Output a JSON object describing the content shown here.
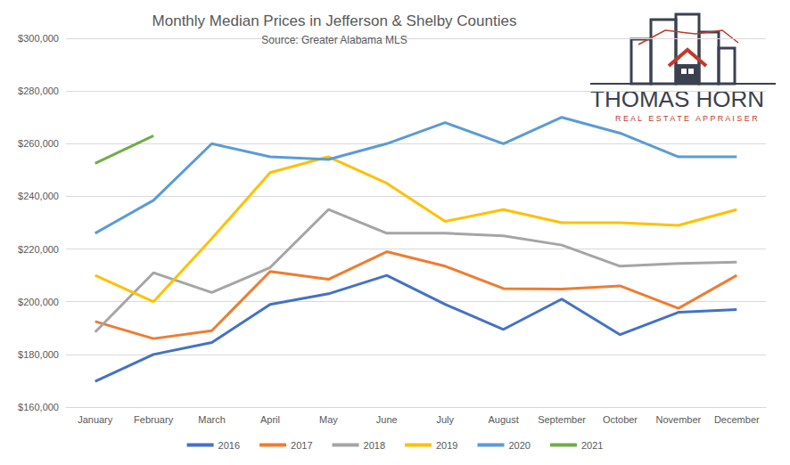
{
  "chart_data": {
    "type": "line",
    "title": "Monthly Median Prices in Jefferson & Shelby Counties",
    "subtitle": "Source: Greater Alabama MLS",
    "annotations": [
      "THOMAS HORN",
      "REAL ESTATE APPRAISER"
    ],
    "categories": [
      "January",
      "February",
      "March",
      "April",
      "May",
      "June",
      "July",
      "August",
      "September",
      "October",
      "November",
      "December"
    ],
    "series": [
      {
        "name": "2016",
        "color": "#4472c4",
        "values": [
          169800,
          180000,
          184500,
          199000,
          203000,
          210000,
          199000,
          189500,
          201000,
          187500,
          196000,
          197000
        ]
      },
      {
        "name": "2017",
        "color": "#ed7d31",
        "values": [
          192500,
          186000,
          189000,
          211500,
          208500,
          219000,
          213500,
          205000,
          204800,
          206000,
          197500,
          210000
        ]
      },
      {
        "name": "2018",
        "color": "#a5a5a5",
        "values": [
          188500,
          211000,
          203500,
          213000,
          235000,
          226000,
          226000,
          225000,
          221500,
          213500,
          214500,
          215000
        ]
      },
      {
        "name": "2019",
        "color": "#ffc000",
        "values": [
          210000,
          200000,
          224000,
          249000,
          255000,
          245000,
          230500,
          235000,
          230000,
          230000,
          229000,
          235000
        ]
      },
      {
        "name": "2020",
        "color": "#5b9bd5",
        "values": [
          226000,
          238500,
          260000,
          255000,
          254000,
          260000,
          268000,
          260000,
          270000,
          264000,
          255000,
          255000
        ]
      },
      {
        "name": "2021",
        "color": "#70ad47",
        "values": [
          252500,
          263000,
          null,
          null,
          null,
          null,
          null,
          null,
          null,
          null,
          null,
          null
        ]
      }
    ],
    "ylim": [
      160000,
      300000
    ],
    "yticks": [
      {
        "value": 160000,
        "label": "$160,000"
      },
      {
        "value": 180000,
        "label": "$180,000"
      },
      {
        "value": 200000,
        "label": "$200,000"
      },
      {
        "value": 220000,
        "label": "$220,000"
      },
      {
        "value": 240000,
        "label": "$240,000"
      },
      {
        "value": 260000,
        "label": "$260,000"
      },
      {
        "value": 280000,
        "label": "$280,000"
      },
      {
        "value": 300000,
        "label": "$300,000"
      }
    ],
    "grid": true,
    "legend": "bottom"
  }
}
